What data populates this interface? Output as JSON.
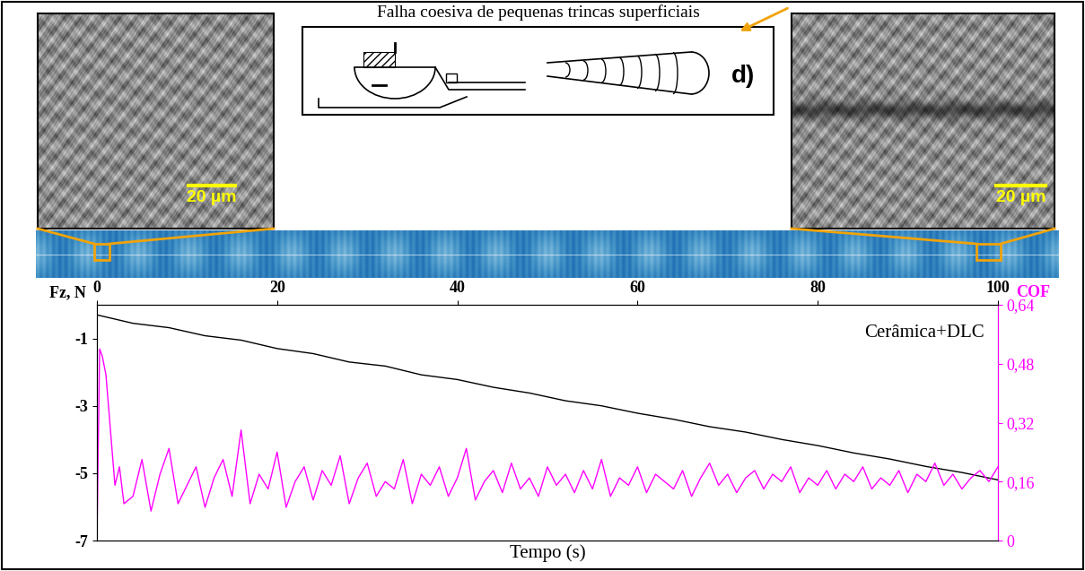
{
  "chart_data": {
    "type": "line",
    "header": "Falha coesiva de pequenas trincas superficiais",
    "panel_label": "d)",
    "scale_bar_labels": [
      "20 µm",
      "20 µm"
    ],
    "annotations": [
      "Cerâmica+DLC"
    ],
    "xlabel": "Tempo (s)",
    "ylabel": "Fz, N",
    "y2label": "COF",
    "xlim": [
      0,
      100
    ],
    "xticks": [
      0,
      20,
      40,
      60,
      80,
      100
    ],
    "ylim": [
      -7,
      0
    ],
    "yticks": [
      -1,
      -3,
      -5,
      -7
    ],
    "y2lim": [
      0,
      0.64
    ],
    "y2ticks": [
      0,
      {
        "value": 0.16,
        "label": "0,16"
      },
      {
        "value": 0.32,
        "label": "0,32"
      },
      {
        "value": 0.48,
        "label": "0,48"
      },
      {
        "value": 0.64,
        "label": "0,64"
      }
    ],
    "grid": false,
    "series": [
      {
        "color": "#000000",
        "x": [
          0,
          4,
          8,
          12,
          16,
          20,
          24,
          28,
          32,
          36,
          40,
          44,
          48,
          52,
          56,
          60,
          64,
          68,
          72,
          76,
          80,
          84,
          88,
          92,
          96,
          100
        ],
        "values": [
          -0.3,
          -0.55,
          -0.68,
          -0.92,
          -1.05,
          -1.3,
          -1.45,
          -1.7,
          -1.82,
          -2.08,
          -2.22,
          -2.45,
          -2.62,
          -2.85,
          -3.0,
          -3.22,
          -3.4,
          -3.62,
          -3.78,
          -4.0,
          -4.18,
          -4.4,
          -4.58,
          -4.8,
          -4.98,
          -5.2
        ]
      },
      {
        "color": "#ff00ff",
        "axis": "y2",
        "x": [
          0,
          0.3,
          0.6,
          1,
          1.5,
          2,
          2.5,
          3,
          4,
          5,
          6,
          7,
          8,
          9,
          10,
          11,
          12,
          13,
          14,
          15,
          16,
          17,
          18,
          19,
          20,
          21,
          22,
          23,
          24,
          25,
          26,
          27,
          28,
          29,
          30,
          31,
          32,
          33,
          34,
          35,
          36,
          37,
          38,
          39,
          40,
          41,
          42,
          43,
          44,
          45,
          46,
          47,
          48,
          49,
          50,
          51,
          52,
          53,
          54,
          55,
          56,
          57,
          58,
          59,
          60,
          61,
          62,
          63,
          64,
          65,
          66,
          67,
          68,
          69,
          70,
          71,
          72,
          73,
          74,
          75,
          76,
          77,
          78,
          79,
          80,
          81,
          82,
          83,
          84,
          85,
          86,
          87,
          88,
          89,
          90,
          91,
          92,
          93,
          94,
          95,
          96,
          97,
          98,
          99,
          100
        ],
        "values": [
          0,
          0.52,
          0.5,
          0.45,
          0.3,
          0.15,
          0.2,
          0.1,
          0.12,
          0.22,
          0.08,
          0.18,
          0.25,
          0.1,
          0.15,
          0.2,
          0.09,
          0.17,
          0.22,
          0.12,
          0.3,
          0.1,
          0.18,
          0.14,
          0.24,
          0.09,
          0.16,
          0.2,
          0.11,
          0.19,
          0.15,
          0.23,
          0.1,
          0.17,
          0.21,
          0.12,
          0.16,
          0.14,
          0.22,
          0.1,
          0.18,
          0.15,
          0.2,
          0.12,
          0.17,
          0.25,
          0.11,
          0.16,
          0.19,
          0.13,
          0.21,
          0.14,
          0.17,
          0.12,
          0.2,
          0.15,
          0.18,
          0.13,
          0.19,
          0.14,
          0.22,
          0.12,
          0.17,
          0.15,
          0.2,
          0.13,
          0.18,
          0.16,
          0.14,
          0.19,
          0.12,
          0.17,
          0.21,
          0.15,
          0.18,
          0.13,
          0.17,
          0.19,
          0.14,
          0.18,
          0.16,
          0.2,
          0.13,
          0.17,
          0.15,
          0.19,
          0.14,
          0.18,
          0.16,
          0.2,
          0.14,
          0.17,
          0.15,
          0.19,
          0.13,
          0.18,
          0.16,
          0.21,
          0.15,
          0.18,
          0.14,
          0.17,
          0.19,
          0.16,
          0.2
        ]
      }
    ]
  }
}
